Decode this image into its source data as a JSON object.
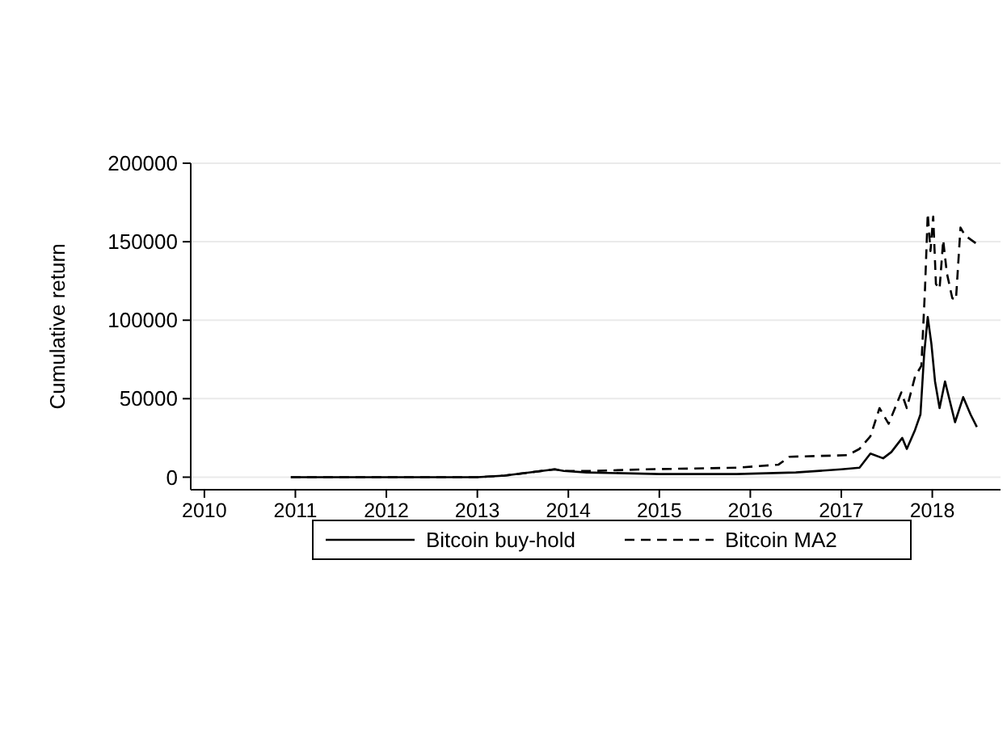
{
  "chart_data": {
    "type": "line",
    "ylabel": "Cumulative return",
    "xlim": [
      2009.85,
      2018.75
    ],
    "xticks": [
      2010,
      2011,
      2012,
      2013,
      2014,
      2015,
      2016,
      2017,
      2018
    ],
    "ylim": [
      -8000,
      200000
    ],
    "yticks": [
      0,
      50000,
      100000,
      150000,
      200000
    ],
    "grid": "y",
    "legend": "bottom",
    "series": [
      {
        "name": "Bitcoin buy-hold",
        "color": "#000000",
        "line_style": "solid",
        "x": [
          2010.95,
          2012.0,
          2013.0,
          2013.3,
          2013.85,
          2013.95,
          2014.2,
          2015.0,
          2015.85,
          2016.5,
          2017.0,
          2017.2,
          2017.32,
          2017.46,
          2017.55,
          2017.67,
          2017.72,
          2017.81,
          2017.87,
          2017.91,
          2017.95,
          2017.99,
          2018.03,
          2018.08,
          2018.14,
          2018.25,
          2018.34,
          2018.42,
          2018.49
        ],
        "values": [
          0,
          0,
          0,
          1000,
          5000,
          4000,
          3000,
          2000,
          2000,
          3000,
          5000,
          6000,
          15000,
          12000,
          16000,
          25000,
          18000,
          30000,
          40000,
          78000,
          102000,
          85000,
          61000,
          44000,
          61000,
          35000,
          51000,
          40000,
          32000
        ]
      },
      {
        "name": "Bitcoin MA2",
        "color": "#000000",
        "line_style": "dashed",
        "x": [
          2010.95,
          2012.0,
          2013.0,
          2013.3,
          2013.85,
          2013.95,
          2014.3,
          2014.85,
          2015.85,
          2016.31,
          2016.43,
          2017.07,
          2017.2,
          2017.32,
          2017.42,
          2017.52,
          2017.66,
          2017.72,
          2017.81,
          2017.88,
          2017.92,
          2017.95,
          2017.98,
          2018.01,
          2018.04,
          2018.08,
          2018.12,
          2018.16,
          2018.22,
          2018.26,
          2018.31,
          2018.36,
          2018.48
        ],
        "values": [
          0,
          0,
          0,
          1000,
          5000,
          4000,
          4000,
          5000,
          6000,
          8000,
          13000,
          14000,
          18000,
          26000,
          44000,
          34000,
          54000,
          44000,
          64000,
          71000,
          120000,
          168000,
          144000,
          166000,
          123000,
          120000,
          151000,
          130000,
          114000,
          113000,
          159000,
          154000,
          149000
        ]
      }
    ]
  }
}
